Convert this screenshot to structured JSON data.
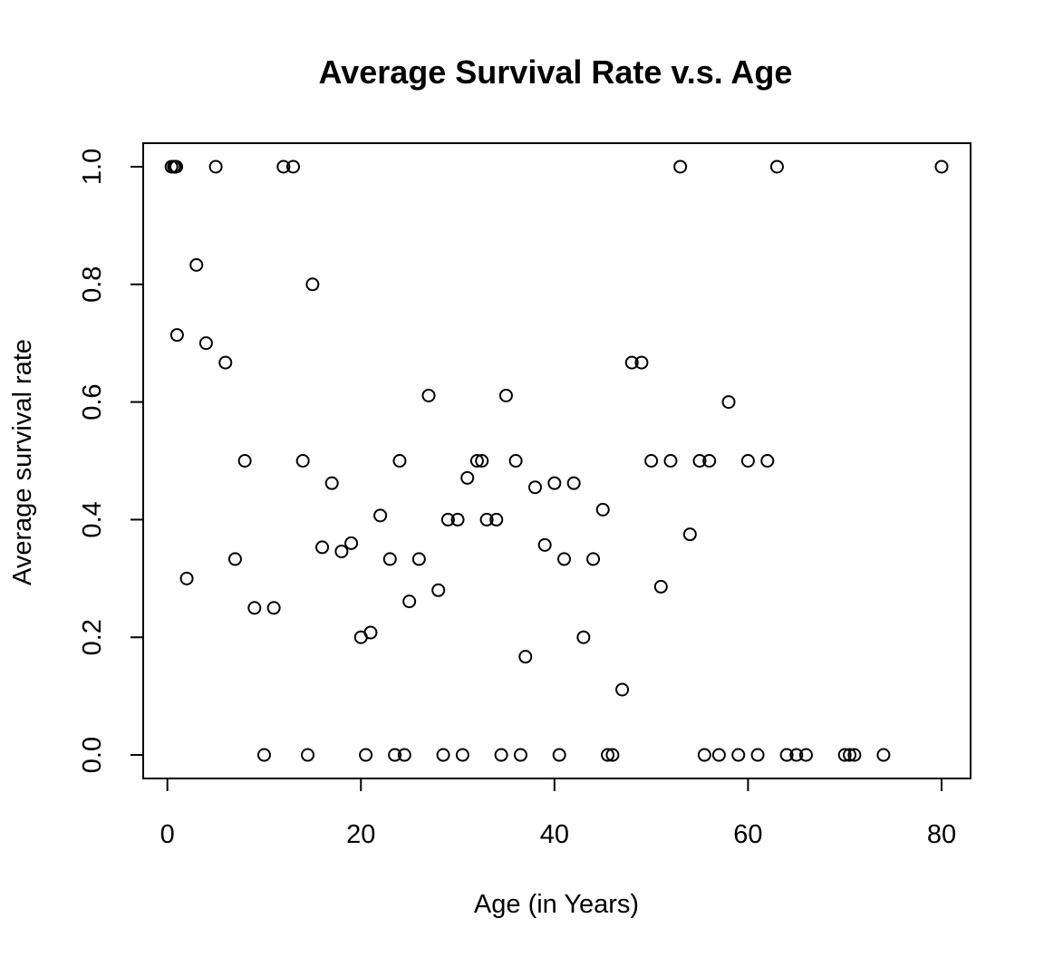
{
  "chart_data": {
    "type": "scatter",
    "title": "Average Survival Rate v.s. Age",
    "xlabel": "Age (in Years)",
    "ylabel": "Average survival rate",
    "xlim": [
      -2.5,
      83
    ],
    "ylim": [
      -0.04,
      1.04
    ],
    "xticks": [
      0,
      20,
      40,
      60,
      80
    ],
    "yticks": [
      0.0,
      0.2,
      0.4,
      0.6,
      0.8,
      1.0
    ],
    "xtick_labels": [
      "0",
      "20",
      "40",
      "60",
      "80"
    ],
    "ytick_labels": [
      "0.0",
      "0.2",
      "0.4",
      "0.6",
      "0.8",
      "1.0"
    ],
    "grid": false,
    "legend": "none",
    "points": [
      {
        "x": 0.42,
        "y": 1.0
      },
      {
        "x": 0.67,
        "y": 1.0
      },
      {
        "x": 0.75,
        "y": 1.0
      },
      {
        "x": 0.83,
        "y": 1.0
      },
      {
        "x": 0.92,
        "y": 1.0
      },
      {
        "x": 1,
        "y": 0.714
      },
      {
        "x": 2,
        "y": 0.3
      },
      {
        "x": 3,
        "y": 0.833
      },
      {
        "x": 4,
        "y": 0.7
      },
      {
        "x": 5,
        "y": 1.0
      },
      {
        "x": 6,
        "y": 0.667
      },
      {
        "x": 7,
        "y": 0.333
      },
      {
        "x": 8,
        "y": 0.5
      },
      {
        "x": 9,
        "y": 0.25
      },
      {
        "x": 10,
        "y": 0.0
      },
      {
        "x": 11,
        "y": 0.25
      },
      {
        "x": 12,
        "y": 1.0
      },
      {
        "x": 13,
        "y": 1.0
      },
      {
        "x": 14,
        "y": 0.5
      },
      {
        "x": 14.5,
        "y": 0.0
      },
      {
        "x": 15,
        "y": 0.8
      },
      {
        "x": 16,
        "y": 0.353
      },
      {
        "x": 17,
        "y": 0.462
      },
      {
        "x": 18,
        "y": 0.346
      },
      {
        "x": 19,
        "y": 0.36
      },
      {
        "x": 20,
        "y": 0.2
      },
      {
        "x": 20.5,
        "y": 0.0
      },
      {
        "x": 21,
        "y": 0.208
      },
      {
        "x": 22,
        "y": 0.407
      },
      {
        "x": 23,
        "y": 0.333
      },
      {
        "x": 23.5,
        "y": 0.0
      },
      {
        "x": 24,
        "y": 0.5
      },
      {
        "x": 24.5,
        "y": 0.0
      },
      {
        "x": 25,
        "y": 0.261
      },
      {
        "x": 26,
        "y": 0.333
      },
      {
        "x": 27,
        "y": 0.611
      },
      {
        "x": 28,
        "y": 0.28
      },
      {
        "x": 28.5,
        "y": 0.0
      },
      {
        "x": 29,
        "y": 0.4
      },
      {
        "x": 30,
        "y": 0.4
      },
      {
        "x": 30.5,
        "y": 0.0
      },
      {
        "x": 31,
        "y": 0.471
      },
      {
        "x": 32,
        "y": 0.5
      },
      {
        "x": 32.5,
        "y": 0.5
      },
      {
        "x": 33,
        "y": 0.4
      },
      {
        "x": 34,
        "y": 0.4
      },
      {
        "x": 34.5,
        "y": 0.0
      },
      {
        "x": 35,
        "y": 0.611
      },
      {
        "x": 36,
        "y": 0.5
      },
      {
        "x": 36.5,
        "y": 0.0
      },
      {
        "x": 37,
        "y": 0.167
      },
      {
        "x": 38,
        "y": 0.455
      },
      {
        "x": 39,
        "y": 0.357
      },
      {
        "x": 40,
        "y": 0.462
      },
      {
        "x": 40.5,
        "y": 0.0
      },
      {
        "x": 41,
        "y": 0.333
      },
      {
        "x": 42,
        "y": 0.462
      },
      {
        "x": 43,
        "y": 0.2
      },
      {
        "x": 44,
        "y": 0.333
      },
      {
        "x": 45,
        "y": 0.417
      },
      {
        "x": 45.5,
        "y": 0.0
      },
      {
        "x": 46,
        "y": 0.0
      },
      {
        "x": 47,
        "y": 0.111
      },
      {
        "x": 48,
        "y": 0.667
      },
      {
        "x": 49,
        "y": 0.667
      },
      {
        "x": 50,
        "y": 0.5
      },
      {
        "x": 51,
        "y": 0.286
      },
      {
        "x": 52,
        "y": 0.5
      },
      {
        "x": 53,
        "y": 1.0
      },
      {
        "x": 54,
        "y": 0.375
      },
      {
        "x": 55,
        "y": 0.5
      },
      {
        "x": 55.5,
        "y": 0.0
      },
      {
        "x": 56,
        "y": 0.5
      },
      {
        "x": 57,
        "y": 0.0
      },
      {
        "x": 58,
        "y": 0.6
      },
      {
        "x": 59,
        "y": 0.0
      },
      {
        "x": 60,
        "y": 0.5
      },
      {
        "x": 61,
        "y": 0.0
      },
      {
        "x": 62,
        "y": 0.5
      },
      {
        "x": 63,
        "y": 1.0
      },
      {
        "x": 64,
        "y": 0.0
      },
      {
        "x": 65,
        "y": 0.0
      },
      {
        "x": 66,
        "y": 0.0
      },
      {
        "x": 70,
        "y": 0.0
      },
      {
        "x": 70.5,
        "y": 0.0
      },
      {
        "x": 71,
        "y": 0.0
      },
      {
        "x": 74,
        "y": 0.0
      },
      {
        "x": 80,
        "y": 1.0
      }
    ]
  }
}
